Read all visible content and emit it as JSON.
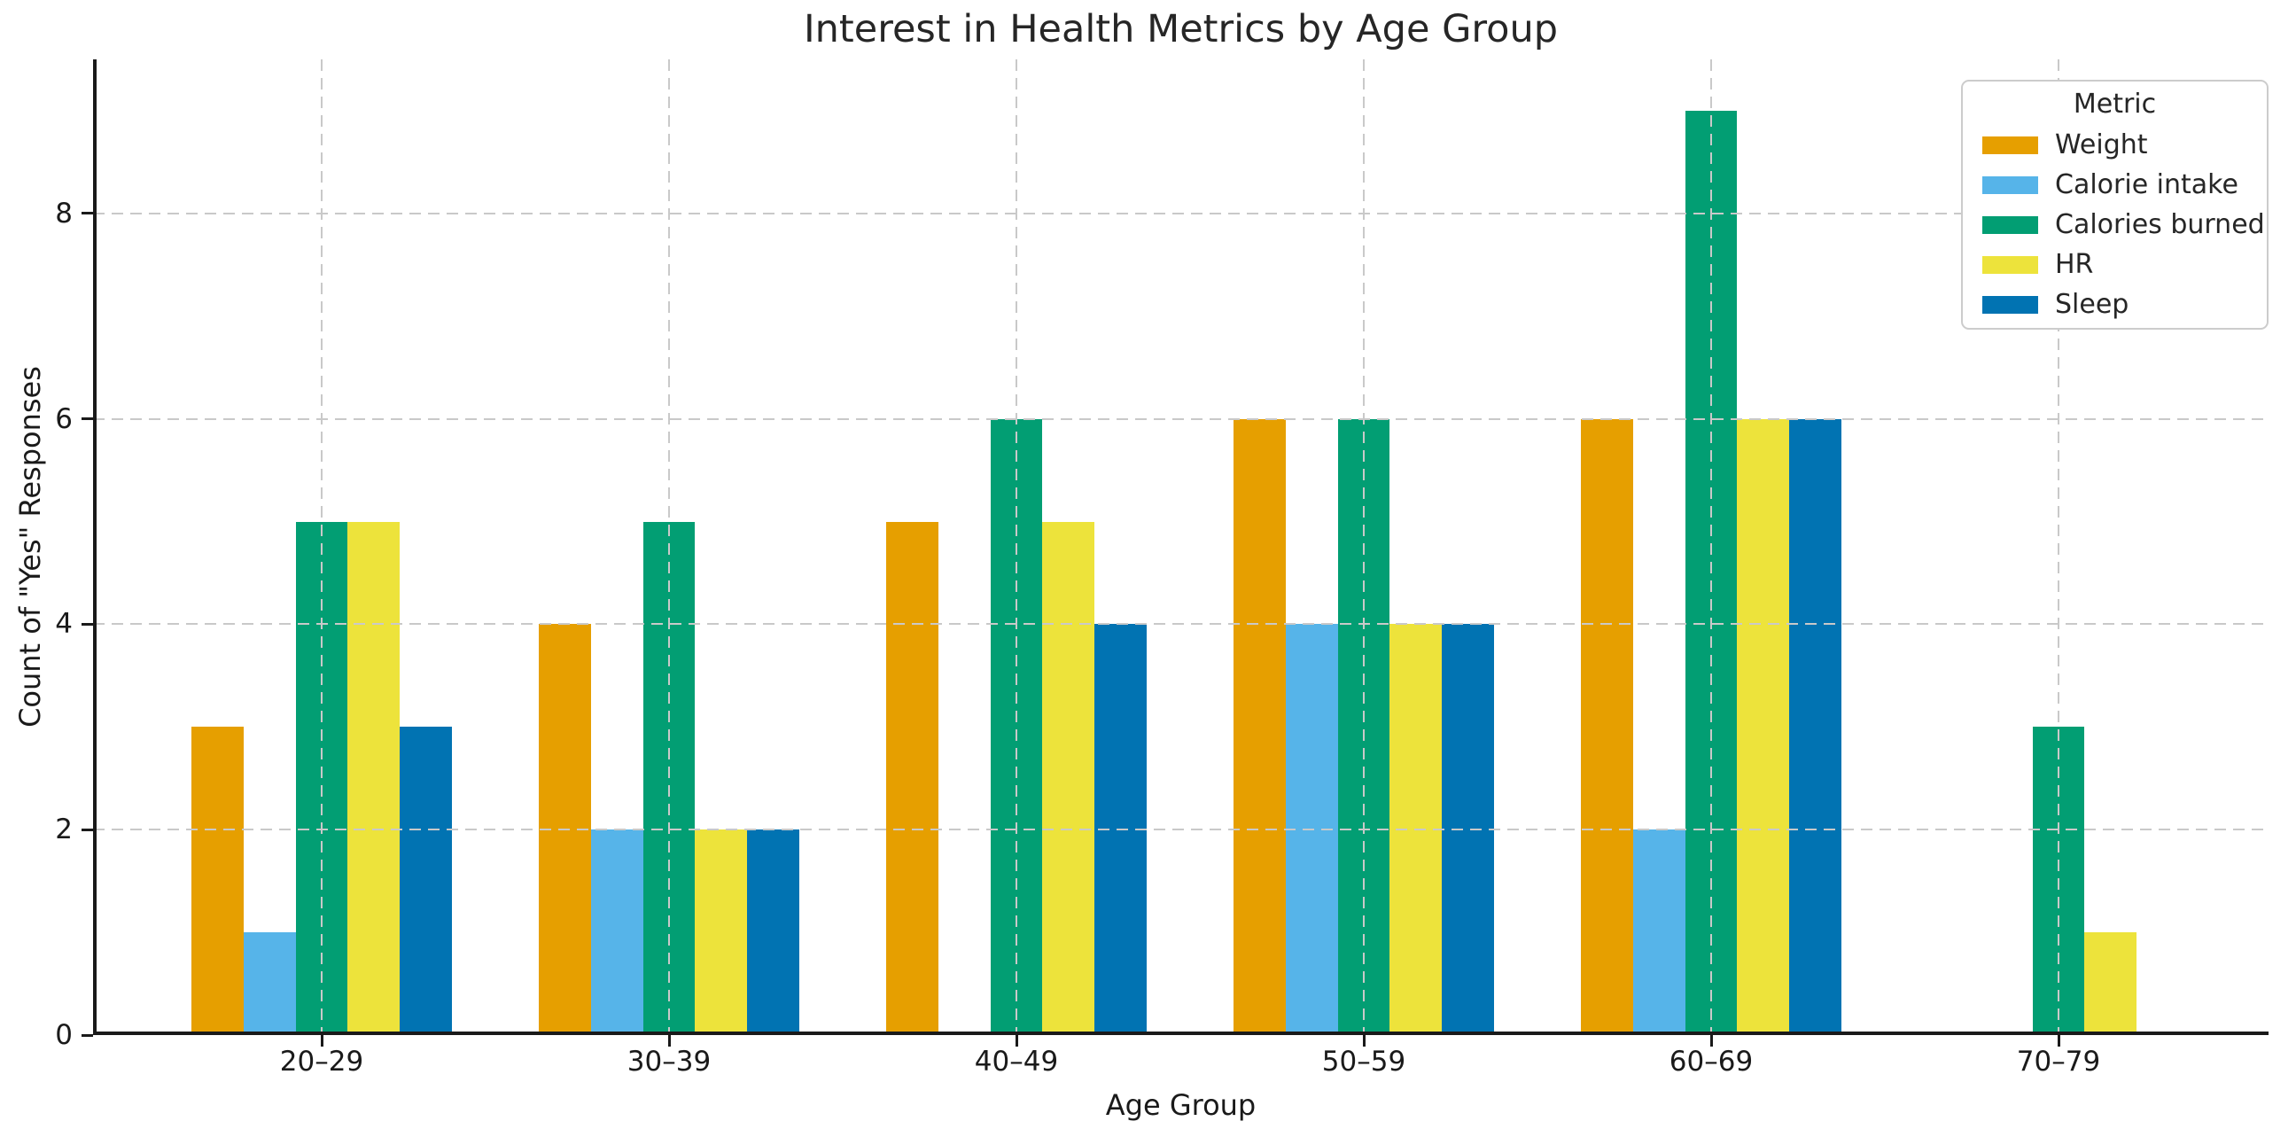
{
  "figure": {
    "background": "#ffffff",
    "text_color": "#1a1a1a",
    "spine_color": "#1a1a1a",
    "grid_color": "#c9c9c9",
    "legend_border_color": "#cccccc"
  },
  "chart_data": {
    "type": "bar",
    "title": "Interest in Health Metrics by Age Group",
    "xlabel": "Age Group",
    "ylabel": "Count of \"Yes\" Responses",
    "categories": [
      "20–29",
      "30–39",
      "40–49",
      "50–59",
      "60–69",
      "70–79"
    ],
    "series": [
      {
        "name": "Weight",
        "color": "#E69F00",
        "values": [
          3,
          4,
          5,
          6,
          6,
          0
        ]
      },
      {
        "name": "Calorie intake",
        "color": "#56B4E9",
        "values": [
          1,
          2,
          0,
          4,
          2,
          0
        ]
      },
      {
        "name": "Calories burned",
        "color": "#029E73",
        "values": [
          5,
          5,
          6,
          6,
          9,
          3
        ]
      },
      {
        "name": "HR",
        "color": "#EDE33B",
        "values": [
          5,
          2,
          5,
          4,
          6,
          1
        ]
      },
      {
        "name": "Sleep",
        "color": "#0173B2",
        "values": [
          3,
          2,
          4,
          4,
          6,
          0
        ]
      }
    ],
    "ylim": [
      0,
      9.5
    ],
    "yticks": [
      0,
      2,
      4,
      6,
      8
    ],
    "grid": "dashed, horizontal at yticks and vertical at category centers, drawn above bars",
    "legend_title": "Metric",
    "legend_position": "upper right"
  }
}
